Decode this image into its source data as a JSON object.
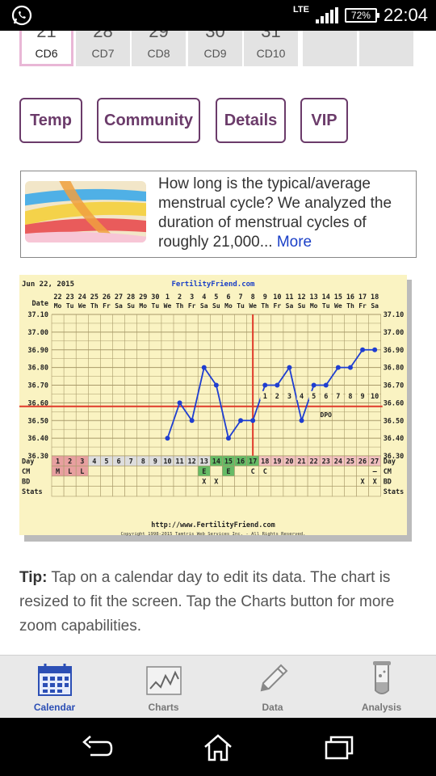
{
  "status": {
    "network": "LTE",
    "battery": "72%",
    "time": "22:04"
  },
  "calendar_strip": [
    {
      "day": "21",
      "label": "CD6",
      "today": true
    },
    {
      "day": "28",
      "label": "CD7"
    },
    {
      "day": "29",
      "label": "CD8"
    },
    {
      "day": "30",
      "label": "CD9"
    },
    {
      "day": "31",
      "label": "CD10"
    },
    {
      "day": "",
      "label": ""
    },
    {
      "day": "",
      "label": ""
    }
  ],
  "tabs": [
    "Temp",
    "Community",
    "Details",
    "VIP"
  ],
  "article": {
    "text": "How long is the typical/average menstrual cycle? We analyzed the duration of menstrual cycles of roughly 21,000...",
    "more": "More"
  },
  "chart_data": {
    "type": "line",
    "date_label": "Jun 22, 2015",
    "site_title": "FertilityFriend.com",
    "row_label_date": "Date",
    "dates": [
      "22",
      "23",
      "24",
      "25",
      "26",
      "27",
      "28",
      "29",
      "30",
      "1",
      "2",
      "3",
      "4",
      "5",
      "6",
      "7",
      "8",
      "9",
      "10",
      "11",
      "12",
      "13",
      "14",
      "15",
      "16",
      "17",
      "18"
    ],
    "weekdays": [
      "Mo",
      "Tu",
      "We",
      "Th",
      "Fr",
      "Sa",
      "Su",
      "Mo",
      "Tu",
      "We",
      "Th",
      "Fr",
      "Sa",
      "Su",
      "Mo",
      "Tu",
      "We",
      "Th",
      "Fr",
      "Sa",
      "Su",
      "Mo",
      "Tu",
      "We",
      "Th",
      "Fr",
      "Sa"
    ],
    "y_ticks": [
      "37.10",
      "37.00",
      "36.90",
      "36.80",
      "36.70",
      "36.60",
      "36.50",
      "36.40",
      "36.30"
    ],
    "ylim": [
      36.3,
      37.1
    ],
    "temps": [
      null,
      null,
      null,
      null,
      null,
      null,
      null,
      null,
      null,
      36.4,
      36.6,
      36.5,
      36.8,
      36.7,
      36.4,
      36.5,
      36.5,
      36.7,
      36.7,
      36.8,
      36.5,
      36.7,
      36.7,
      36.8,
      36.8,
      36.9,
      36.9
    ],
    "coverline": 36.58,
    "ovulation_day": 17,
    "dpo_numbers": [
      "1",
      "2",
      "3",
      "4",
      "5",
      "6",
      "7",
      "8",
      "9",
      "10"
    ],
    "dpo_label": "DPO",
    "row_label_day": "Day",
    "cycle_days": [
      "1",
      "2",
      "3",
      "4",
      "5",
      "6",
      "7",
      "8",
      "9",
      "10",
      "11",
      "12",
      "13",
      "14",
      "15",
      "16",
      "17",
      "18",
      "19",
      "20",
      "21",
      "22",
      "23",
      "24",
      "25",
      "26",
      "27"
    ],
    "cycle_day_colors": [
      "#e8a0a0",
      "#e8a0a0",
      "#e8a0a0",
      "#ddd",
      "#ddd",
      "#ddd",
      "#ddd",
      "#ddd",
      "#ddd",
      "#ddd",
      "#ddd",
      "#ddd",
      "#ddd",
      "#66bb66",
      "#66bb66",
      "#66bb66",
      "#66bb66",
      "#f2c0c0",
      "#f2c0c0",
      "#f2c0c0",
      "#f2c0c0",
      "#f2c0c0",
      "#f2c0c0",
      "#f2c0c0",
      "#f2c0c0",
      "#f2c0c0",
      "#f2c0c0"
    ],
    "row_label_cm": "CM",
    "cm_values": [
      "M",
      "L",
      "L",
      "",
      "",
      "",
      "",
      "",
      "",
      "",
      "",
      "",
      "E",
      "",
      "E",
      "",
      "C",
      "C",
      "",
      "",
      "",
      "",
      "",
      "",
      "",
      "",
      "—"
    ],
    "row_label_bd": "BD",
    "bd_values": [
      "",
      "",
      "",
      "",
      "",
      "",
      "",
      "",
      "",
      "",
      "",
      "",
      "X",
      "X",
      "",
      "",
      "",
      "",
      "",
      "",
      "",
      "",
      "",
      "",
      "",
      "X",
      "X"
    ],
    "row_label_stats": "Stats",
    "footer_url": "http://www.FertilityFriend.com",
    "copyright": "Copyright 1998-2015 Tamtris Web Services Inc. - All Rights Reserved."
  },
  "tip": {
    "label": "Tip:",
    "text": "Tap on a calendar day to edit its data. The chart is resized to fit the screen. Tap the Charts button for more zoom capabilities."
  },
  "bottom_nav": [
    {
      "label": "Calendar",
      "icon": "calendar-icon",
      "active": true
    },
    {
      "label": "Charts",
      "icon": "chart-icon"
    },
    {
      "label": "Data",
      "icon": "pencil-icon"
    },
    {
      "label": "Analysis",
      "icon": "test-tube-icon"
    }
  ]
}
